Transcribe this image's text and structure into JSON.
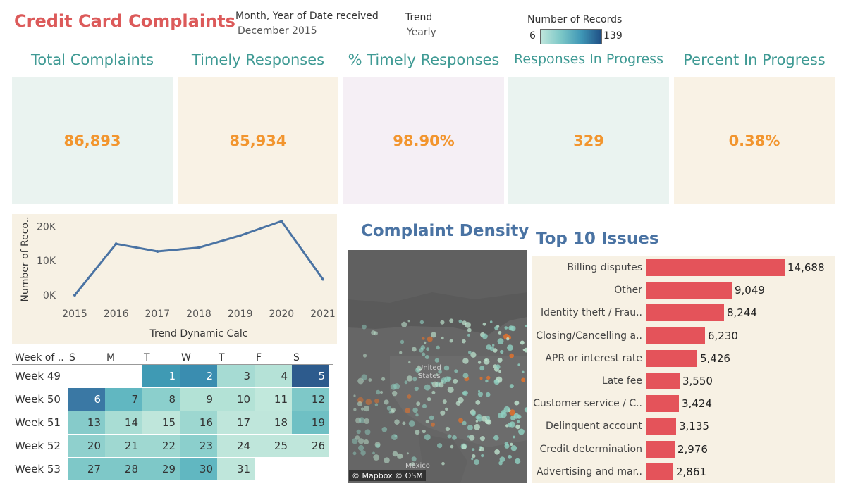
{
  "header": {
    "title": "Credit Card Complaints",
    "filter_date_label": "Month, Year of Date received",
    "filter_date_value": "December 2015",
    "filter_trend_label": "Trend",
    "filter_trend_value": "Yearly",
    "legend_title": "Number of Records",
    "legend_min": "6",
    "legend_max": "139"
  },
  "colors": {
    "title": "#dc5a5a",
    "kpi_title": "#3f9a94",
    "kpi_value": "#f2952e",
    "bar": "#e4535a",
    "line": "#4a73a3"
  },
  "kpis": [
    {
      "title": "Total Complaints",
      "value": "86,893",
      "bg": "#eaf3f0"
    },
    {
      "title": "Timely Responses",
      "value": "85,934",
      "bg": "#f9f2e5"
    },
    {
      "title": "% Timely Responses",
      "value": "98.90%",
      "bg": "#f5eff5"
    },
    {
      "title": "Responses In Progress",
      "value": "329",
      "bg": "#eaf3f0"
    },
    {
      "title": "Percent In Progress",
      "value": "0.38%",
      "bg": "#f9f2e5"
    }
  ],
  "chart_data": {
    "type": "line",
    "x": [
      "2015",
      "2016",
      "2017",
      "2018",
      "2019",
      "2020",
      "2021"
    ],
    "values": [
      0,
      14900,
      12700,
      13800,
      17300,
      21500,
      4600
    ],
    "xlabel": "Trend Dynamic Calc",
    "ylabel": "Number of Reco..",
    "yticks": [
      "0K",
      "10K",
      "20K"
    ],
    "ylim": [
      0,
      21500
    ]
  },
  "calendar": {
    "corner": "Week of ..",
    "days": [
      "S",
      "M",
      "T",
      "W",
      "T",
      "F",
      "S"
    ],
    "weeks": [
      {
        "label": "Week 49",
        "cells": [
          "",
          "",
          "1",
          "2",
          "3",
          "4",
          "5"
        ],
        "colors": [
          "",
          "",
          "#3f9ab4",
          "#3a8db0",
          "#a6dbd3",
          "#b5e2d7",
          "#2d5b8d"
        ]
      },
      {
        "label": "Week 50",
        "cells": [
          "6",
          "7",
          "8",
          "9",
          "10",
          "11",
          "12"
        ],
        "colors": [
          "#3a78a4",
          "#61b7c1",
          "#8bcfcc",
          "#b3e2d6",
          "#b3e2d6",
          "#c1e8dc",
          "#7ec8c8"
        ]
      },
      {
        "label": "Week 51",
        "cells": [
          "13",
          "14",
          "15",
          "16",
          "17",
          "18",
          "19"
        ],
        "colors": [
          "#86cbca",
          "#a9ddd4",
          "#bfe6db",
          "#9dd7d0",
          "#bfe6db",
          "#bfe6db",
          "#6fc0c4"
        ]
      },
      {
        "label": "Week 52",
        "cells": [
          "20",
          "21",
          "22",
          "23",
          "24",
          "25",
          "26"
        ],
        "colors": [
          "#8fd0cd",
          "#9fd8d1",
          "#9fd8d1",
          "#8bcfcc",
          "#bfe6db",
          "#bfe6db",
          "#bfe6db"
        ]
      },
      {
        "label": "Week 53",
        "cells": [
          "27",
          "28",
          "29",
          "30",
          "31",
          "",
          ""
        ],
        "colors": [
          "#7ec8c8",
          "#7ec8c8",
          "#7ec8c8",
          "#61b7c1",
          "#bfe6db",
          "",
          ""
        ]
      }
    ]
  },
  "map": {
    "title": "Complaint Density",
    "label_us": "United States",
    "label_mexico": "Mexico",
    "attribution": "© Mapbox © OSM"
  },
  "issues": {
    "title": "Top 10 Issues",
    "items": [
      {
        "label": "Billing disputes",
        "value": 14688,
        "display": "14,688"
      },
      {
        "label": "Other",
        "value": 9049,
        "display": "9,049"
      },
      {
        "label": "Identity theft / Frau..",
        "value": 8244,
        "display": "8,244"
      },
      {
        "label": "Closing/Cancelling a..",
        "value": 6230,
        "display": "6,230"
      },
      {
        "label": "APR or interest rate",
        "value": 5426,
        "display": "5,426"
      },
      {
        "label": "Late fee",
        "value": 3550,
        "display": "3,550"
      },
      {
        "label": "Customer service / C..",
        "value": 3424,
        "display": "3,424"
      },
      {
        "label": "Delinquent account",
        "value": 3135,
        "display": "3,135"
      },
      {
        "label": "Credit determination",
        "value": 2976,
        "display": "2,976"
      },
      {
        "label": "Advertising and mar..",
        "value": 2861,
        "display": "2,861"
      }
    ]
  }
}
